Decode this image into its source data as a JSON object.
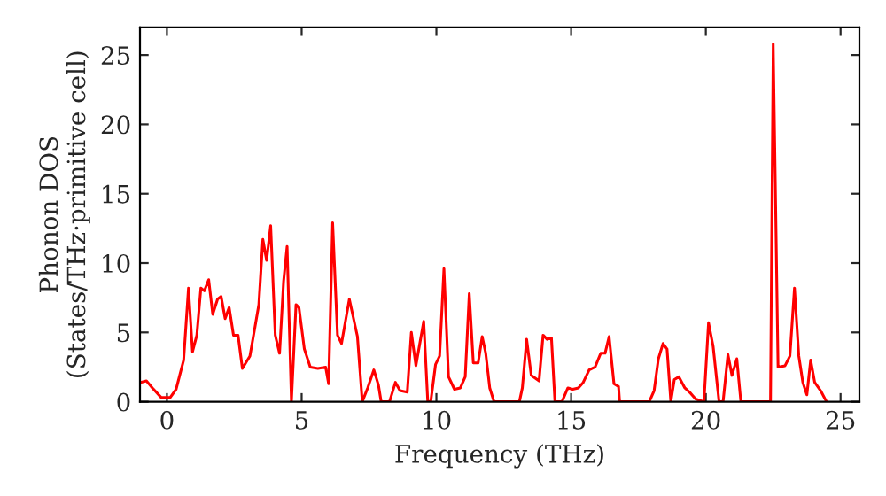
{
  "chart_data": {
    "type": "line",
    "xlabel": "Frequency (THz)",
    "ylabel": "Phonon DOS\n(States/THz·primitive cell)",
    "xlim": [
      -1,
      25.7
    ],
    "ylim": [
      0,
      27
    ],
    "xticks": [
      0,
      5,
      10,
      15,
      20,
      25
    ],
    "yticks": [
      0,
      5,
      10,
      15,
      20,
      25
    ],
    "grid": false,
    "marker": "none",
    "line_style": "solid",
    "series": [
      {
        "color": "#ff0000",
        "x": [
          -0.98,
          -0.76,
          -0.54,
          -0.21,
          0.12,
          0.34,
          0.62,
          0.8,
          0.95,
          1.11,
          1.26,
          1.39,
          1.55,
          1.7,
          1.88,
          2.01,
          2.16,
          2.31,
          2.47,
          2.64,
          2.8,
          3.08,
          3.26,
          3.41,
          3.56,
          3.7,
          3.85,
          4.02,
          4.18,
          4.33,
          4.46,
          4.62,
          4.79,
          4.9,
          5.1,
          5.32,
          5.6,
          5.89,
          6.0,
          6.15,
          6.33,
          6.48,
          6.77,
          7.07,
          7.25,
          7.45,
          7.68,
          7.85,
          7.95,
          8.26,
          8.48,
          8.65,
          8.92,
          9.07,
          9.24,
          9.53,
          9.68,
          9.79,
          9.97,
          10.12,
          10.28,
          10.45,
          10.67,
          10.89,
          11.07,
          11.22,
          11.37,
          11.55,
          11.7,
          11.83,
          11.98,
          12.14,
          13.08,
          13.19,
          13.35,
          13.52,
          13.81,
          13.96,
          14.11,
          14.27,
          14.4,
          14.66,
          14.88,
          15.06,
          15.27,
          15.45,
          15.67,
          15.89,
          16.1,
          16.26,
          16.41,
          16.59,
          16.76,
          16.8,
          17.9,
          18.08,
          18.24,
          18.41,
          18.56,
          18.7,
          18.83,
          19.0,
          19.22,
          19.44,
          19.62,
          19.93,
          20.1,
          20.27,
          20.49,
          20.64,
          20.82,
          20.97,
          21.15,
          21.3,
          22.4,
          22.5,
          22.68,
          22.94,
          23.12,
          23.29,
          23.45,
          23.6,
          23.75,
          23.89,
          24.04,
          24.26,
          24.48
        ],
        "values": [
          1.4,
          1.5,
          1.0,
          0.3,
          0.3,
          0.9,
          3.0,
          8.2,
          3.6,
          4.8,
          8.2,
          8.0,
          8.8,
          6.3,
          7.4,
          7.6,
          6.0,
          6.8,
          4.8,
          4.8,
          2.4,
          3.3,
          5.3,
          7.0,
          11.7,
          10.2,
          12.7,
          4.8,
          3.5,
          8.7,
          11.2,
          0,
          7.0,
          6.8,
          3.8,
          2.5,
          2.4,
          2.5,
          1.3,
          12.9,
          4.8,
          4.2,
          7.4,
          4.7,
          0,
          1.0,
          2.3,
          1.2,
          0,
          0,
          1.4,
          0.8,
          0.7,
          5.0,
          2.6,
          5.8,
          0,
          0,
          2.7,
          3.3,
          9.6,
          1.8,
          0.9,
          1.0,
          1.8,
          7.8,
          2.8,
          2.8,
          4.7,
          3.5,
          1.0,
          0,
          0,
          1.0,
          4.5,
          1.9,
          1.5,
          4.8,
          4.5,
          4.6,
          0,
          0,
          1.0,
          0.9,
          1.0,
          1.4,
          2.3,
          2.5,
          3.5,
          3.5,
          4.7,
          1.3,
          1.1,
          0,
          0,
          0.8,
          3.1,
          4.2,
          3.8,
          0,
          1.6,
          1.8,
          1.0,
          0.6,
          0.2,
          0,
          5.7,
          4.0,
          0,
          0,
          3.4,
          1.9,
          3.1,
          0,
          0,
          25.8,
          2.5,
          2.6,
          3.3,
          8.2,
          3.3,
          1.4,
          0.5,
          3.0,
          1.4,
          0.8,
          0
        ]
      }
    ]
  }
}
